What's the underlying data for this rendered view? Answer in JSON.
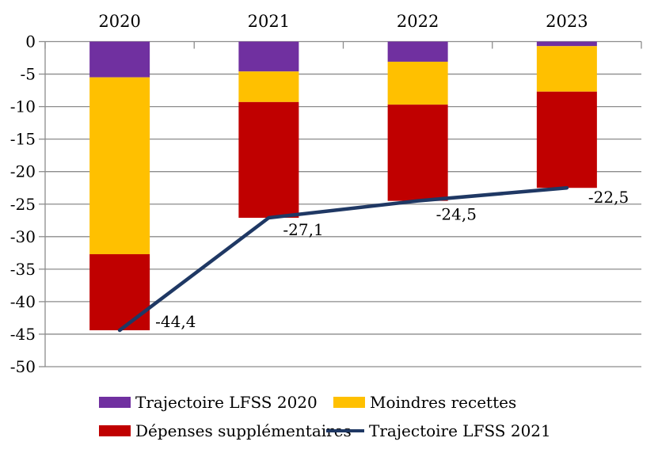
{
  "chart_data": {
    "type": "bar",
    "subtype": "stacked-bars-with-line-overlay",
    "title": "",
    "categories": [
      "2020",
      "2021",
      "2022",
      "2023"
    ],
    "bar_series": [
      {
        "name": "Trajectoire LFSS 2020",
        "color": "#7030A0",
        "values": [
          -5.5,
          -4.6,
          -3.1,
          -0.7
        ]
      },
      {
        "name": "Moindres recettes",
        "color": "#FFC000",
        "values": [
          -27.2,
          -4.7,
          -6.6,
          -7.0
        ]
      },
      {
        "name": "Dépenses supplémentaires",
        "color": "#C00000",
        "values": [
          -11.7,
          -17.8,
          -14.8,
          -14.8
        ]
      }
    ],
    "bar_totals": [
      -44.4,
      -27.1,
      -24.5,
      -22.5
    ],
    "line_series": {
      "name": "Trajectoire LFSS 2021",
      "color": "#1F3864",
      "values": [
        -44.4,
        -27.1,
        -24.5,
        -22.5
      ],
      "point_labels": [
        "-44,4",
        "-27,1",
        "-24,5",
        "-22,5"
      ]
    },
    "y_axis": {
      "min": -50,
      "max": 0,
      "step": 5,
      "tick_labels": [
        "0",
        "-5",
        "-10",
        "-15",
        "-20",
        "-25",
        "-30",
        "-35",
        "-40",
        "-45",
        "-50"
      ]
    },
    "x_axis": {
      "labels_position": "top"
    },
    "grid": true,
    "legend_position": "bottom",
    "colors": {
      "grid": "#8C8C8C",
      "axis": "#8C8C8C",
      "text": "#000000",
      "background": "#FFFFFF"
    }
  }
}
